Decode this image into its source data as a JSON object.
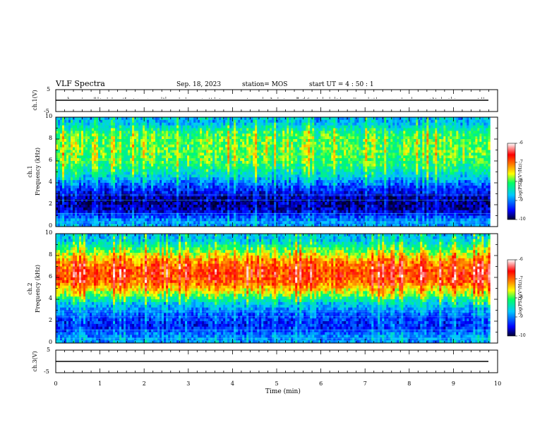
{
  "header": {
    "title": "VLF Spectra",
    "date": "Sep. 18, 2023",
    "station": "station= MOS",
    "start": "start  UT =  4 : 50 : 1"
  },
  "labels": {
    "ch1_voltage": "ch.1(V)",
    "ch1_spec": "ch.1",
    "ch2_spec": "ch.2",
    "ch3_voltage": "ch.3(V)",
    "frequency": "Frequency (kHz)",
    "xlabel": "Time  (min)",
    "colorbar": "log(PSD)(V²/Hz)"
  },
  "colors": {
    "axis": "#000000",
    "scale": [
      "#000030",
      "#0000ff",
      "#00c8ff",
      "#00ff64",
      "#ffff00",
      "#ff8000",
      "#ff0000",
      "#ffffff"
    ]
  },
  "chart_data": [
    {
      "type": "line",
      "panel": "ch.1 waveform",
      "ylabel": "ch.1(V)",
      "ylim": [
        -5,
        5
      ],
      "yticks": [
        "5",
        "-5"
      ],
      "xlim": [
        0,
        10
      ],
      "approx_level": -2.2
    },
    {
      "type": "heatmap",
      "panel": "ch.1 spectrogram",
      "ylabel": "Frequency (kHz)",
      "ylim": [
        0,
        10
      ],
      "yticks": [
        "0",
        "2",
        "4",
        "6",
        "8",
        "10"
      ],
      "xlim": [
        0,
        9.83
      ],
      "colorbar": {
        "label": "log(PSD)(V²/Hz)",
        "range": [
          -10,
          -6
        ],
        "ticks": [
          "-6",
          "-7",
          "-8",
          "-9",
          "-10"
        ]
      },
      "profile_khz": [
        0.5,
        1.5,
        2.5,
        3.5,
        4.5,
        5.5,
        6.5,
        7.5,
        8.5,
        9.5
      ],
      "profile_log_psd": [
        -8.8,
        -9.6,
        -9.7,
        -9.2,
        -8.5,
        -8.0,
        -7.8,
        -7.8,
        -7.9,
        -8.6
      ]
    },
    {
      "type": "heatmap",
      "panel": "ch.2 spectrogram",
      "ylabel": "Frequency (kHz)",
      "ylim": [
        0,
        10
      ],
      "yticks": [
        "0",
        "2",
        "4",
        "6",
        "8",
        "10"
      ],
      "xlim": [
        0,
        9.83
      ],
      "colorbar": {
        "label": "log(PSD)(V²/Hz)",
        "range": [
          -10,
          -6
        ],
        "ticks": [
          "-6",
          "-7",
          "-8",
          "-9",
          "-10"
        ]
      },
      "profile_khz": [
        0.5,
        1.5,
        2.5,
        3.5,
        4.5,
        5.5,
        6.5,
        7.5,
        8.5,
        9.5
      ],
      "profile_log_psd": [
        -8.8,
        -9.3,
        -9.1,
        -8.6,
        -7.6,
        -6.8,
        -6.6,
        -7.0,
        -7.8,
        -8.5
      ]
    },
    {
      "type": "line",
      "panel": "ch.3 waveform",
      "ylabel": "ch.3(V)",
      "ylim": [
        -5,
        5
      ],
      "yticks": [
        "5",
        "-5"
      ],
      "xlim": [
        0,
        10
      ],
      "approx_level": -2.2
    }
  ],
  "xaxis": {
    "range": [
      0,
      10
    ],
    "ticks": [
      "0",
      "1",
      "2",
      "3",
      "4",
      "5",
      "6",
      "7",
      "8",
      "9",
      "10"
    ]
  }
}
